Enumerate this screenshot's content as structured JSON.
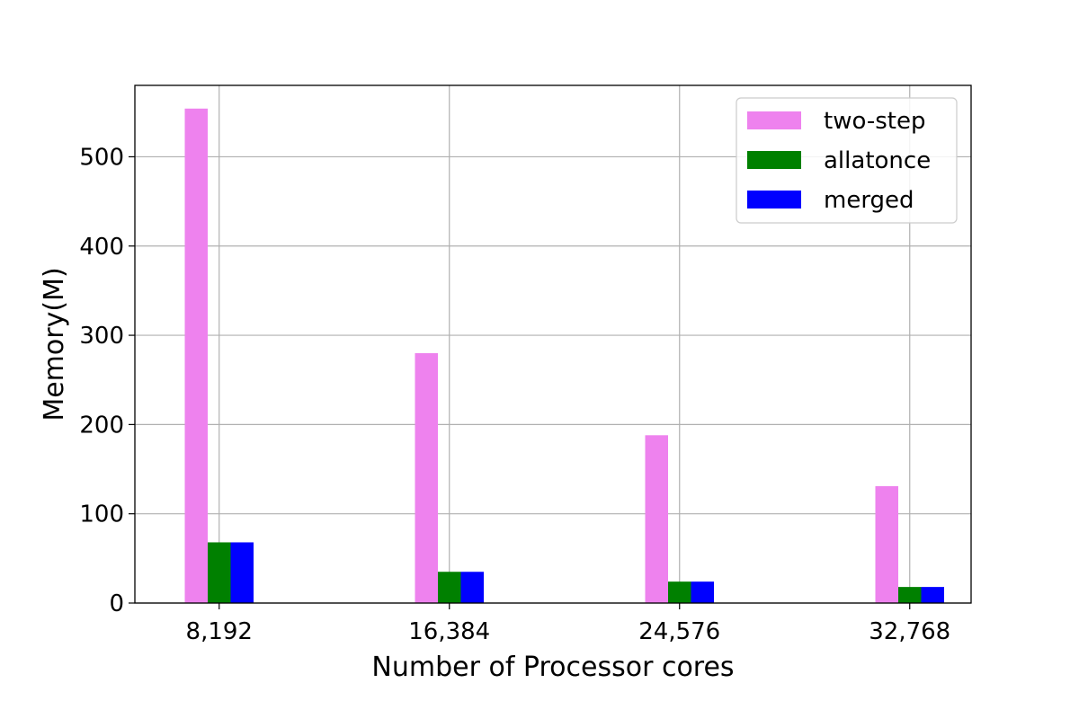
{
  "chart_data": {
    "type": "bar",
    "title": "",
    "xlabel": "Number of Processor cores",
    "ylabel": "Memory(M)",
    "categories": [
      "8,192",
      "16,384",
      "24,576",
      "32,768"
    ],
    "series": [
      {
        "name": "two-step",
        "color": "#ee82ee",
        "values": [
          554,
          280,
          188,
          131
        ]
      },
      {
        "name": "allatonce",
        "color": "#008000",
        "values": [
          68,
          35,
          24,
          18
        ]
      },
      {
        "name": "merged",
        "color": "#0000ff",
        "values": [
          68,
          35,
          24,
          18
        ]
      }
    ],
    "ylim": [
      0,
      580
    ],
    "yticks": [
      0,
      100,
      200,
      300,
      400,
      500
    ],
    "grid": true,
    "legend_position": "top-right"
  }
}
